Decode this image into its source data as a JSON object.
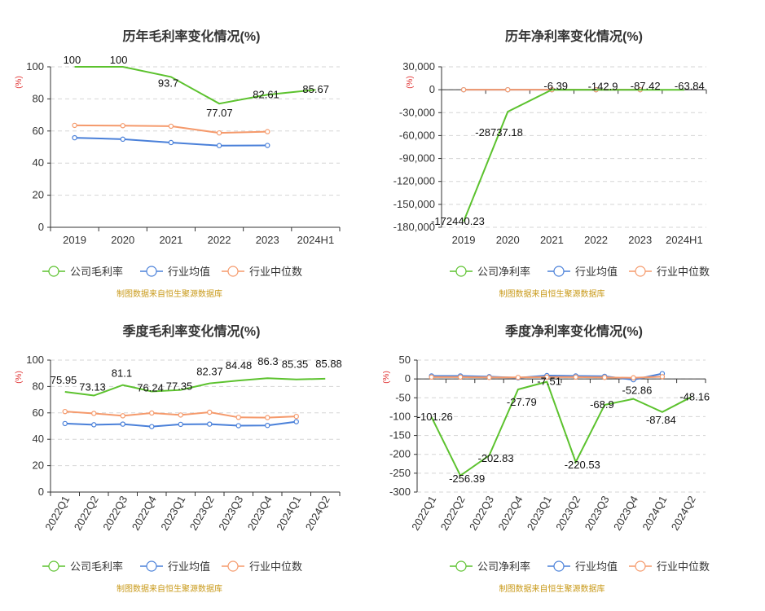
{
  "colors": {
    "company": "#5cc22e",
    "industry_avg": "#4a80d9",
    "industry_median": "#f59a6c",
    "source_text": "#c99a1a",
    "unit_text": "#e03030",
    "grid": "#d5d5d5",
    "axis": "#333333"
  },
  "chart_data": [
    {
      "type": "line",
      "title": "历年毛利率变化情况(%)",
      "unit_label": "(%)",
      "categories": [
        "2019",
        "2020",
        "2021",
        "2022",
        "2023",
        "2024H1"
      ],
      "ylim": [
        0,
        100
      ],
      "yticks": [
        0,
        20,
        40,
        60,
        80,
        100
      ],
      "ytick_labels": [
        "0",
        "20",
        "40",
        "60",
        "80",
        "100"
      ],
      "series": [
        {
          "name": "公司毛利率",
          "role": "company",
          "values": [
            100,
            100,
            93.7,
            77.07,
            82.61,
            85.67
          ],
          "labels": [
            "100",
            "100",
            "93.7",
            "77.07",
            "82.61",
            "85.67"
          ]
        },
        {
          "name": "行业均值",
          "role": "industry_avg",
          "values": [
            55.8,
            54.9,
            52.8,
            50.9,
            51.0,
            null
          ]
        },
        {
          "name": "行业中位数",
          "role": "industry_median",
          "values": [
            63.5,
            63.3,
            63.0,
            58.8,
            59.6,
            null
          ]
        }
      ],
      "source": "制图数据来自恒生聚源数据库"
    },
    {
      "type": "line",
      "title": "历年净利率变化情况(%)",
      "unit_label": "(%)",
      "categories": [
        "2019",
        "2020",
        "2021",
        "2022",
        "2023",
        "2024H1"
      ],
      "ylim": [
        -180000,
        30000
      ],
      "yticks": [
        -180000,
        -150000,
        -120000,
        -90000,
        -60000,
        -30000,
        0,
        30000
      ],
      "ytick_labels": [
        "-180,000",
        "-150,000",
        "-120,000",
        "-90,000",
        "-60,000",
        "-30,000",
        "0",
        "30,000"
      ],
      "series": [
        {
          "name": "公司净利率",
          "role": "company",
          "values": [
            -172440.23,
            -28737.18,
            -6.39,
            -142.9,
            -87.42,
            -63.84
          ],
          "labels": [
            "-172440.23",
            "-28737.18",
            "-6.39",
            "-142.9",
            "-87.42",
            "-63.84"
          ]
        },
        {
          "name": "行业均值",
          "role": "industry_avg",
          "values": [
            0,
            0,
            0,
            0,
            0,
            null
          ]
        },
        {
          "name": "行业中位数",
          "role": "industry_median",
          "values": [
            0,
            0,
            0,
            0,
            0,
            null
          ]
        }
      ],
      "source": "制图数据来自恒生聚源数据库"
    },
    {
      "type": "line",
      "title": "季度毛利率变化情况(%)",
      "unit_label": "(%)",
      "categories": [
        "2022Q1",
        "2022Q2",
        "2022Q3",
        "2022Q4",
        "2023Q1",
        "2023Q2",
        "2023Q3",
        "2023Q4",
        "2024Q1",
        "2024Q2"
      ],
      "ylim": [
        0,
        100
      ],
      "yticks": [
        0,
        20,
        40,
        60,
        80,
        100
      ],
      "ytick_labels": [
        "0",
        "20",
        "40",
        "60",
        "80",
        "100"
      ],
      "series": [
        {
          "name": "公司毛利率",
          "role": "company",
          "values": [
            75.95,
            73.13,
            81.1,
            76.24,
            77.35,
            82.37,
            84.48,
            86.3,
            85.35,
            85.88
          ],
          "labels": [
            "75.95",
            "73.13",
            "81.1",
            "76.24",
            "77.35",
            "82.37",
            "84.48",
            "86.3",
            "85.35",
            "85.88"
          ]
        },
        {
          "name": "行业均值",
          "role": "industry_avg",
          "values": [
            51.9,
            51.0,
            51.5,
            49.6,
            51.3,
            51.5,
            50.3,
            50.5,
            53.3,
            null
          ]
        },
        {
          "name": "行业中位数",
          "role": "industry_median",
          "values": [
            61.0,
            59.6,
            57.8,
            59.9,
            58.4,
            60.5,
            56.6,
            56.4,
            57.3,
            null
          ]
        }
      ],
      "source": "制图数据来自恒生聚源数据库"
    },
    {
      "type": "line",
      "title": "季度净利率变化情况(%)",
      "unit_label": "(%)",
      "categories": [
        "2022Q1",
        "2022Q2",
        "2022Q3",
        "2022Q4",
        "2023Q1",
        "2023Q2",
        "2023Q3",
        "2023Q4",
        "2024Q1",
        "2024Q2"
      ],
      "ylim": [
        -300,
        50
      ],
      "yticks": [
        -300,
        -250,
        -200,
        -150,
        -100,
        -50,
        0,
        50
      ],
      "ytick_labels": [
        "-300",
        "-250",
        "-200",
        "-150",
        "-100",
        "-50",
        "0",
        "50"
      ],
      "series": [
        {
          "name": "公司净利率",
          "role": "company",
          "values": [
            -101.26,
            -256.39,
            -202.83,
            -27.79,
            -7.51,
            -220.53,
            -68.9,
            -52.86,
            -87.84,
            -48.16
          ],
          "labels": [
            "-101.26",
            "-256.39",
            "-202.83",
            "-27.79",
            "-7.51",
            "-220.53",
            "-68.9",
            "-52.86",
            "-87.84",
            "-48.16"
          ]
        },
        {
          "name": "行业均值",
          "role": "industry_avg",
          "values": [
            8,
            8,
            6,
            3,
            9,
            8,
            7,
            -2,
            14,
            null
          ]
        },
        {
          "name": "行业中位数",
          "role": "industry_median",
          "values": [
            5,
            5,
            4,
            4,
            5,
            5,
            4,
            3,
            6,
            null
          ]
        }
      ],
      "source": "制图数据来自恒生聚源数据库"
    }
  ]
}
